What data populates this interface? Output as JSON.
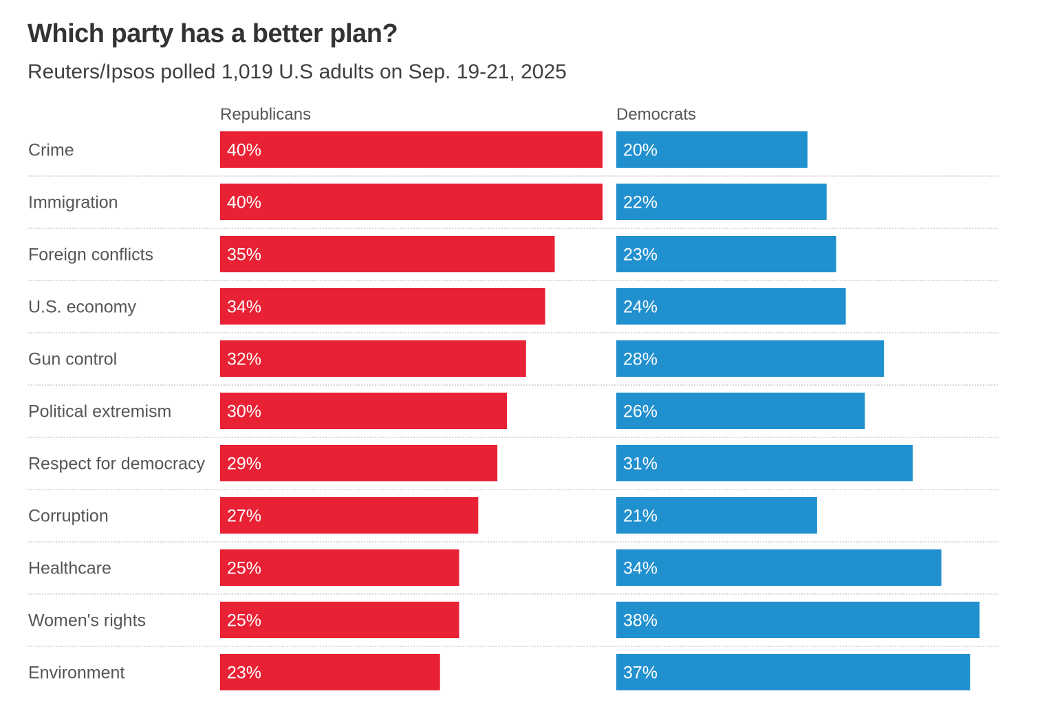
{
  "header": {
    "title": "Which party has a better plan?",
    "subtitle": "Reuters/Ipsos polled 1,019 U.S adults on Sep. 19-21, 2025"
  },
  "colors": {
    "republicans": "#e92134",
    "democrats": "#2190cf",
    "row_label": "#555555",
    "value_label": "#ffffff",
    "separator": "#cccccc"
  },
  "chart_data": {
    "type": "bar",
    "orientation": "horizontal",
    "title": "Which party has a better plan?",
    "subtitle": "Reuters/Ipsos polled 1,019 U.S adults on Sep. 19-21, 2025",
    "value_format": "percent",
    "grid": false,
    "categories": [
      "Crime",
      "Immigration",
      "Foreign conflicts",
      "U.S. economy",
      "Gun control",
      "Political extremism",
      "Respect for democracy",
      "Corruption",
      "Healthcare",
      "Women's rights",
      "Environment"
    ],
    "series": [
      {
        "name": "Republicans",
        "color": "#e92134",
        "values": [
          40,
          40,
          35,
          34,
          32,
          30,
          29,
          27,
          25,
          25,
          23
        ],
        "labels": [
          "40%",
          "40%",
          "35%",
          "34%",
          "32%",
          "30%",
          "29%",
          "27%",
          "25%",
          "25%",
          "23%"
        ]
      },
      {
        "name": "Democrats",
        "color": "#2190cf",
        "values": [
          20,
          22,
          23,
          24,
          28,
          26,
          31,
          21,
          34,
          38,
          37
        ],
        "labels": [
          "20%",
          "22%",
          "23%",
          "24%",
          "28%",
          "26%",
          "31%",
          "21%",
          "34%",
          "38%",
          "37%"
        ]
      }
    ]
  }
}
